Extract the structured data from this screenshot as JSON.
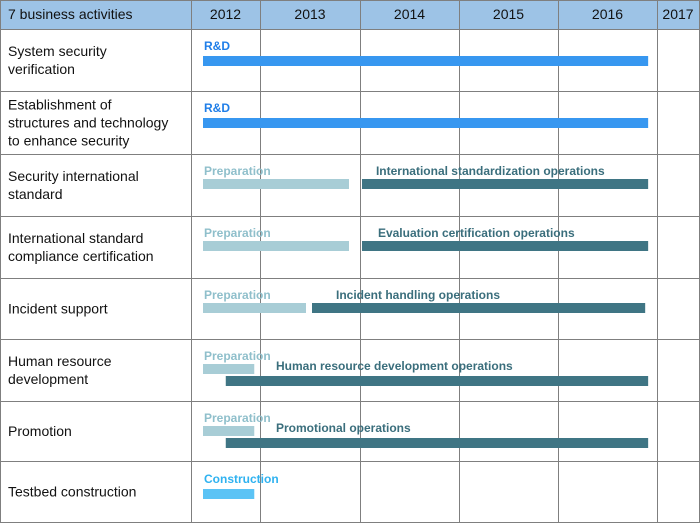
{
  "chart_data": {
    "type": "gantt",
    "header": {
      "first_column": "7 business activities"
    },
    "years": [
      "2012",
      "2013",
      "2014",
      "2015",
      "2016",
      "2017"
    ],
    "colors": {
      "header_bg": "#9dc3e6",
      "grid": "#7f7f7f",
      "rd": "#3797f0",
      "preparation": "#a8cdd6",
      "operations": "#3f7584",
      "construction": "#5bc3f5",
      "rd_text": "#1f7ee8",
      "preparation_text": "#8fbfcb",
      "operations_text": "#3a6e7c",
      "construction_text": "#2fb2f0"
    },
    "rows": [
      {
        "label_lines": [
          "System security",
          "verification"
        ],
        "bars": [
          {
            "phase": "rd",
            "label": "R&D",
            "start": 2012.0,
            "end": 2016.85,
            "label_at": 2012.0
          }
        ]
      },
      {
        "label_lines": [
          "Establishment of",
          "structures and technology",
          "to enhance security"
        ],
        "bars": [
          {
            "phase": "rd",
            "label": "R&D",
            "start": 2012.0,
            "end": 2016.85,
            "label_at": 2012.0
          }
        ]
      },
      {
        "label_lines": [
          "Security international",
          "standard"
        ],
        "bars": [
          {
            "phase": "preparation",
            "label": "Preparation",
            "start": 2012.0,
            "end": 2013.83,
            "label_at": 2012.0
          },
          {
            "phase": "operations",
            "label": "International  standardization  operations",
            "start": 2013.9,
            "end": 2016.85,
            "label_at": 2014.03
          }
        ]
      },
      {
        "label_lines": [
          "International standard",
          "compliance certification"
        ],
        "bars": [
          {
            "phase": "preparation",
            "label": "Preparation",
            "start": 2012.0,
            "end": 2013.83,
            "label_at": 2012.0
          },
          {
            "phase": "operations",
            "label": "Evaluation  certification  operations",
            "start": 2013.9,
            "end": 2016.85,
            "label_at": 2014.05
          }
        ]
      },
      {
        "label_lines": [
          "Incident support"
        ],
        "bars": [
          {
            "phase": "preparation",
            "label": "Preparation",
            "start": 2012.0,
            "end": 2013.4,
            "label_at": 2012.0
          },
          {
            "phase": "operations",
            "label": "Incident  handling  operations",
            "start": 2013.4,
            "end": 2016.82,
            "label_at": 2013.63
          }
        ]
      },
      {
        "label_lines": [
          "Human resource",
          "development"
        ],
        "bars": [
          {
            "phase": "preparation",
            "label": "Preparation",
            "start": 2012.0,
            "end": 2012.83,
            "label_at": 2012.0
          },
          {
            "phase": "operations",
            "label": "Human  resource  development  operations",
            "start": 2012.33,
            "end": 2016.85,
            "label_at": 2013.03
          }
        ]
      },
      {
        "label_lines": [
          "Promotion"
        ],
        "bars": [
          {
            "phase": "preparation",
            "label": "Preparation",
            "start": 2012.0,
            "end": 2012.83,
            "label_at": 2012.0
          },
          {
            "phase": "operations",
            "label": "Promotional  operations",
            "start": 2012.33,
            "end": 2016.85,
            "label_at": 2013.03
          }
        ]
      },
      {
        "label_lines": [
          "Testbed construction"
        ],
        "bars": [
          {
            "phase": "construction",
            "label": "Construction",
            "start": 2012.0,
            "end": 2012.83,
            "label_at": 2012.0
          }
        ]
      }
    ]
  }
}
